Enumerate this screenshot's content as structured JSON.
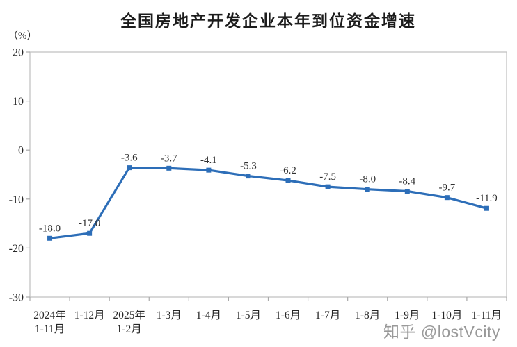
{
  "page": {
    "background": "#ffffff"
  },
  "watermark": {
    "text": "知乎 @lostVcity"
  },
  "chart_data": {
    "type": "line",
    "title": "全国房地产开发企业本年到位资金增速",
    "unit_label": "（%）",
    "categories": [
      [
        "2024年",
        "1-11月"
      ],
      [
        "1-12月"
      ],
      [
        "2025年",
        "1-2月"
      ],
      [
        "1-3月"
      ],
      [
        "1-4月"
      ],
      [
        "1-5月"
      ],
      [
        "1-6月"
      ],
      [
        "1-7月"
      ],
      [
        "1-8月"
      ],
      [
        "1-9月"
      ],
      [
        "1-10月"
      ],
      [
        "1-11月"
      ]
    ],
    "values": [
      -18.0,
      -17.0,
      -3.6,
      -3.7,
      -4.1,
      -5.3,
      -6.2,
      -7.5,
      -8.0,
      -8.4,
      -9.7,
      -11.9
    ],
    "point_labels": [
      "-18.0",
      "-17.0",
      "-3.6",
      "-3.7",
      "-4.1",
      "-5.3",
      "-6.2",
      "-7.5",
      "-8.0",
      "-8.4",
      "-9.7",
      "-11.9"
    ],
    "ylabel": "",
    "xlabel": "",
    "ylim": [
      -30,
      20
    ],
    "yticks": [
      20,
      10,
      0,
      -10,
      -20,
      -30
    ],
    "grid": false,
    "legend": "none",
    "colors": {
      "line": "#2D6EB8",
      "marker": "#2D6EB8",
      "axis_box": "#c3c3c3",
      "tick": "#a9a9a9",
      "tick_label": "#262626",
      "data_label": "#303030"
    }
  }
}
